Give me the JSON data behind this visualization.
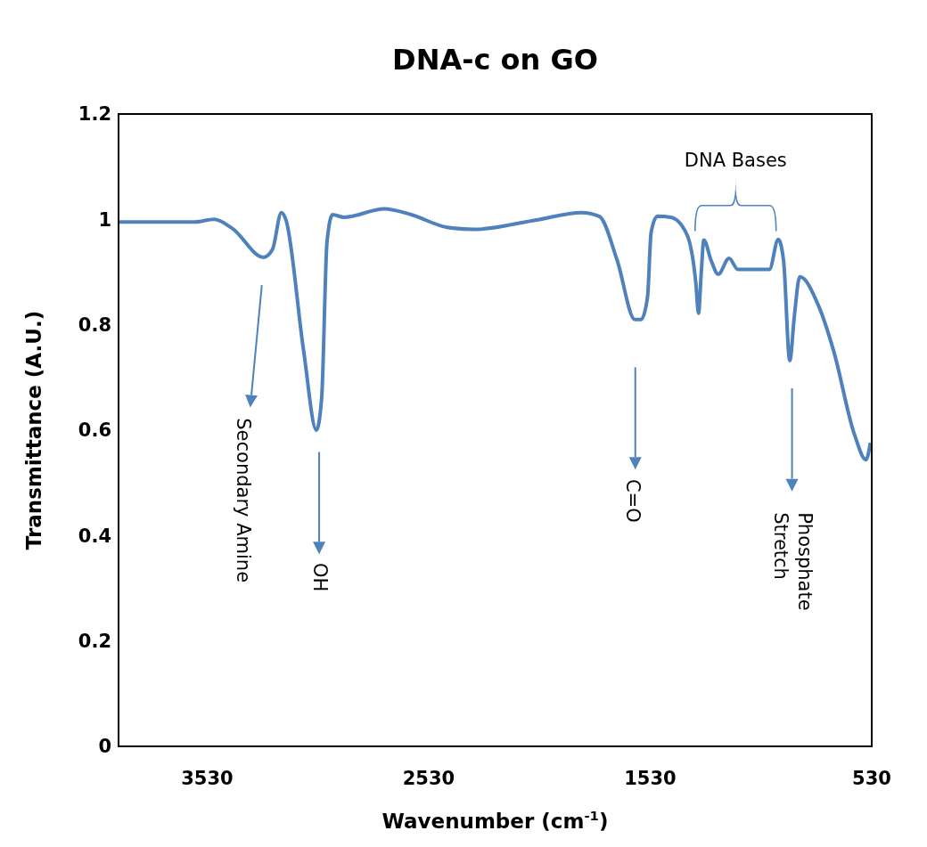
{
  "chart_data": {
    "type": "line",
    "title": "DNA-c on GO",
    "xlabel": "Wavenumber (cm$^{-1}$)",
    "ylabel": "Transmittance (A.U.)",
    "x": [
      3930,
      3587,
      3498,
      3417,
      3275,
      3235,
      3195,
      3175,
      3094,
      3037,
      3013,
      2989,
      2964,
      2912,
      2730,
      2609,
      2447,
      2326,
      2043,
      1841,
      1760,
      1679,
      1599,
      1571,
      1542,
      1526,
      1498,
      1437,
      1364,
      1324,
      1312,
      1300,
      1288,
      1255,
      1223,
      1174,
      1134,
      992,
      952,
      928,
      900,
      879,
      855,
      770,
      701,
      609,
      556,
      536
    ],
    "series": [
      {
        "color": "#4f81bd",
        "values": [
          0.995,
          0.995,
          1.0,
          0.983,
          0.928,
          0.943,
          1.013,
          1.0,
          0.749,
          0.6,
          0.662,
          0.957,
          1.009,
          1.004,
          1.02,
          1.009,
          0.985,
          0.981,
          0.999,
          1.013,
          1.006,
          0.922,
          0.81,
          0.81,
          0.853,
          0.975,
          1.006,
          1.004,
          0.971,
          0.879,
          0.822,
          0.896,
          0.961,
          0.922,
          0.896,
          0.926,
          0.905,
          0.905,
          0.962,
          0.922,
          0.732,
          0.818,
          0.891,
          0.836,
          0.749,
          0.593,
          0.544,
          0.576
        ]
      }
    ],
    "xlim": [
      3930,
      530
    ],
    "xticks": [
      3530,
      2530,
      1530,
      530
    ],
    "ylim": [
      0,
      1.2
    ],
    "yticks": [
      0,
      0.2,
      0.4,
      0.6,
      0.8,
      1,
      1.2
    ],
    "grid": false,
    "marker": "none",
    "line_style": "solid",
    "annotations": [
      "Secondary Amine",
      "OH",
      "C=O",
      "Phosphate Stretch",
      "DNA Bases"
    ]
  }
}
